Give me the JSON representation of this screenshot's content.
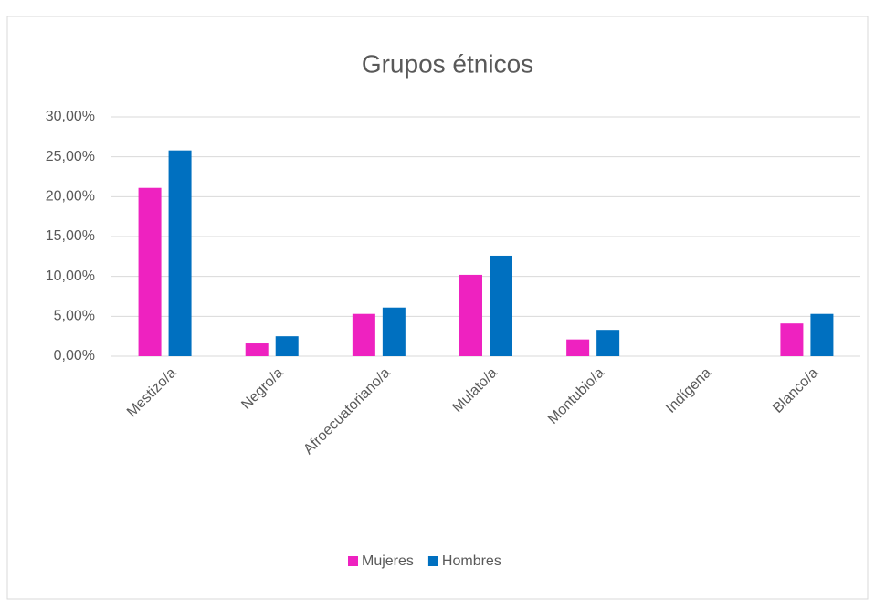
{
  "chart_data": {
    "type": "bar",
    "title": "Grupos étnicos",
    "categories": [
      "Mestizo/a",
      "Negro/a",
      "Afroecuatoriano/a",
      "Mulato/a",
      "Montubio/a",
      "Indígena",
      "Blanco/a"
    ],
    "series": [
      {
        "name": "Mujeres",
        "color": "#ee22c0",
        "values": [
          21.1,
          1.6,
          5.3,
          10.2,
          2.1,
          0,
          4.1
        ]
      },
      {
        "name": "Hombres",
        "color": "#0070c0",
        "values": [
          25.8,
          2.5,
          6.1,
          12.6,
          3.3,
          0,
          5.3
        ]
      }
    ],
    "ylim": [
      0,
      30
    ],
    "yticks": [
      {
        "value": 0,
        "label": "0,00%"
      },
      {
        "value": 5,
        "label": "5,00%"
      },
      {
        "value": 10,
        "label": "10,00%"
      },
      {
        "value": 15,
        "label": "15,00%"
      },
      {
        "value": 20,
        "label": "20,00%"
      },
      {
        "value": 25,
        "label": "25,00%"
      },
      {
        "value": 30,
        "label": "30,00%"
      }
    ],
    "grid": true,
    "legend": "bottom"
  }
}
